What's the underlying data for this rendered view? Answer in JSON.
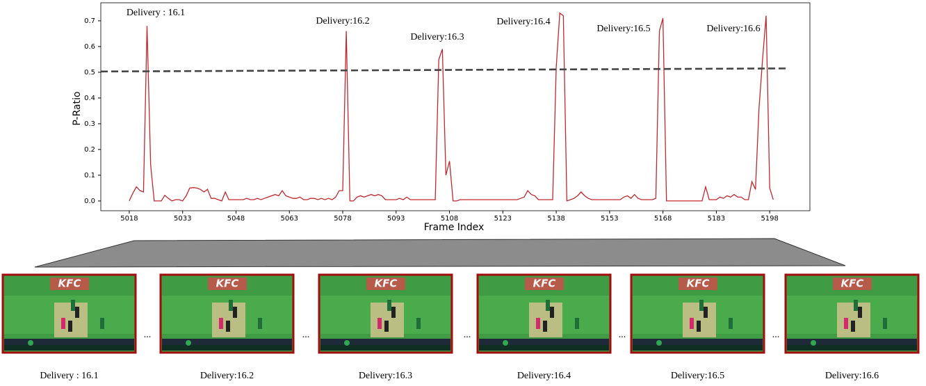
{
  "chart_data": {
    "type": "line",
    "x_label": "Frame Index",
    "y_label": "P-Ratio",
    "xlim": [
      5010,
      5209.3
    ],
    "ylim": [
      -0.038,
      0.77
    ],
    "xticks": [
      5018,
      5033,
      5048,
      5063,
      5078,
      5093,
      5108,
      5123,
      5138,
      5153,
      5168,
      5183,
      5198
    ],
    "yticks": [
      {
        "value": 0,
        "label": "0.0"
      },
      0.1,
      0.2,
      0.3,
      0.4,
      0.5,
      0.6,
      0.7
    ],
    "x": [
      5018,
      5019,
      5020,
      5021,
      5022,
      5023,
      5024,
      5025,
      5026,
      5027,
      5028,
      5029,
      5030,
      5031,
      5032,
      5033,
      5034,
      5035,
      5036,
      5037,
      5038,
      5039,
      5040,
      5041,
      5042,
      5043,
      5044,
      5045,
      5046,
      5047,
      5048,
      5049,
      5050,
      5051,
      5052,
      5053,
      5054,
      5055,
      5056,
      5057,
      5058,
      5059,
      5060,
      5061,
      5062,
      5063,
      5064,
      5065,
      5066,
      5067,
      5068,
      5069,
      5070,
      5071,
      5072,
      5073,
      5074,
      5075,
      5076,
      5077,
      5078,
      5079,
      5080,
      5081,
      5082,
      5083,
      5084,
      5085,
      5086,
      5087,
      5088,
      5089,
      5090,
      5091,
      5092,
      5093,
      5094,
      5095,
      5096,
      5097,
      5098,
      5099,
      5100,
      5101,
      5102,
      5103,
      5104,
      5105,
      5106,
      5107,
      5108,
      5109,
      5110,
      5111,
      5112,
      5113,
      5114,
      5115,
      5116,
      5117,
      5118,
      5119,
      5120,
      5121,
      5122,
      5123,
      5124,
      5125,
      5126,
      5127,
      5128,
      5129,
      5130,
      5131,
      5132,
      5133,
      5134,
      5135,
      5136,
      5137,
      5138,
      5139,
      5140,
      5141,
      5142,
      5143,
      5144,
      5145,
      5146,
      5147,
      5148,
      5149,
      5150,
      5151,
      5152,
      5153,
      5154,
      5155,
      5156,
      5157,
      5158,
      5159,
      5160,
      5161,
      5162,
      5163,
      5164,
      5165,
      5166,
      5167,
      5168,
      5169,
      5170,
      5171,
      5172,
      5173,
      5174,
      5175,
      5176,
      5177,
      5178,
      5179,
      5180,
      5181,
      5182,
      5183,
      5184,
      5185,
      5186,
      5187,
      5188,
      5189,
      5190,
      5191,
      5192,
      5193,
      5194,
      5195,
      5196,
      5197,
      5198,
      5199
    ],
    "series": [
      {
        "color": "#c0282d",
        "values": [
          0.0,
          0.03,
          0.055,
          0.04,
          0.035,
          0.68,
          0.14,
          0.0,
          0.0,
          0.0,
          0.022,
          0.01,
          0.0,
          0.005,
          0.005,
          0.0,
          0.02,
          0.05,
          0.052,
          0.05,
          0.045,
          0.035,
          0.045,
          0.01,
          0.01,
          0.005,
          0.0,
          0.035,
          0.005,
          0.005,
          0.005,
          0.005,
          0.005,
          0.01,
          0.005,
          0.005,
          0.01,
          0.005,
          0.01,
          0.015,
          0.02,
          0.025,
          0.02,
          0.04,
          0.02,
          0.015,
          0.01,
          0.01,
          0.015,
          0.005,
          0.005,
          0.01,
          0.01,
          0.005,
          0.01,
          0.005,
          0.01,
          0.005,
          0.015,
          0.04,
          0.04,
          0.66,
          0.0,
          0.0,
          0.015,
          0.02,
          0.015,
          0.02,
          0.025,
          0.02,
          0.025,
          0.02,
          0.005,
          0.005,
          0.005,
          0.005,
          0.01,
          0.005,
          0.015,
          0.005,
          0.005,
          0.005,
          0.005,
          0.005,
          0.005,
          0.005,
          0.005,
          0.55,
          0.59,
          0.1,
          0.155,
          0.0,
          0.0,
          0.005,
          0.005,
          0.005,
          0.005,
          0.005,
          0.005,
          0.005,
          0.005,
          0.005,
          0.005,
          0.005,
          0.005,
          0.005,
          0.005,
          0.005,
          0.005,
          0.005,
          0.01,
          0.015,
          0.04,
          0.025,
          0.02,
          0.005,
          0.005,
          0.005,
          0.005,
          0.005,
          0.52,
          0.73,
          0.72,
          0.0,
          0.005,
          0.01,
          0.02,
          0.035,
          0.02,
          0.01,
          0.005,
          0.005,
          0.005,
          0.005,
          0.005,
          0.005,
          0.005,
          0.005,
          0.005,
          0.015,
          0.02,
          0.01,
          0.025,
          0.01,
          0.005,
          0.005,
          0.005,
          0.005,
          0.01,
          0.66,
          0.71,
          0.0,
          0.0,
          0.0,
          0.0,
          0.0,
          0.0,
          0.0,
          0.0,
          0.0,
          0.0,
          0.0,
          0.055,
          0.005,
          0.005,
          0.005,
          0.015,
          0.01,
          0.02,
          0.015,
          0.025,
          0.015,
          0.015,
          0.005,
          0.005,
          0.075,
          0.045,
          0.36,
          0.55,
          0.72,
          0.05,
          0.005
        ]
      }
    ],
    "threshold": {
      "x": [
        5010,
        5202.5
      ],
      "y": [
        0.503,
        0.515
      ],
      "color": "#444444",
      "style": "dashed"
    },
    "annotations": [
      "Delivery : 16.1",
      "Delivery:16.2",
      "Delivery:16.3",
      "Delivery:16.4",
      "Delivery:16.5",
      "Delivery:16.6"
    ]
  },
  "frames": {
    "labels": [
      "Delivery : 16.1",
      "Delivery:16.2",
      "Delivery:16.3",
      "Delivery:16.4",
      "Delivery:16.5",
      "Delivery:16.6"
    ],
    "separator": "...",
    "sponsor": "KFC"
  }
}
